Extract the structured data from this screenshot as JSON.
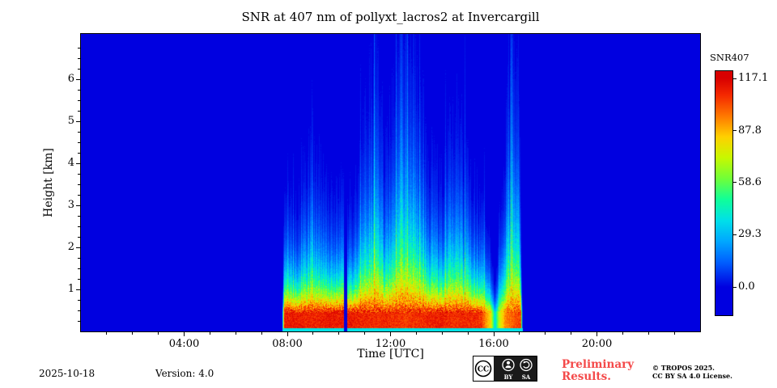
{
  "footer": {
    "date": "2025-10-18",
    "version": "Version: 4.0",
    "preliminary_line1": "Preliminary",
    "preliminary_line2": "Results.",
    "preliminary_color": "#f44a4a",
    "copyright_line1": "© TROPOS 2025.",
    "copyright_line2": "CC BY SA 4.0 License.",
    "cc_badge": {
      "cc": "CC",
      "by": "BY",
      "sa": "SA"
    }
  },
  "chart_data": {
    "type": "heatmap",
    "title": "SNR at 407 nm of pollyxt_lacros2 at Invercargill",
    "xlabel": "Time [UTC]",
    "ylabel": "Height [km]",
    "x_range_hours": [
      0,
      24
    ],
    "y_range_km": [
      0,
      7.077
    ],
    "x_ticks": [
      {
        "hour": 4,
        "label": "04:00"
      },
      {
        "hour": 8,
        "label": "08:00"
      },
      {
        "hour": 12,
        "label": "12:00"
      },
      {
        "hour": 16,
        "label": "16:00"
      },
      {
        "hour": 20,
        "label": "20:00"
      }
    ],
    "y_ticks": [
      1,
      2,
      3,
      4,
      5,
      6
    ],
    "grid": false,
    "colorbar": {
      "label": "SNR407",
      "vmin": 0,
      "vmax": 117.1,
      "ticks": [
        {
          "value": 0.0,
          "label": "0.0"
        },
        {
          "value": 29.3,
          "label": "29.3"
        },
        {
          "value": 58.6,
          "label": "58.6"
        },
        {
          "value": 87.8,
          "label": "87.8"
        },
        {
          "value": 117.1,
          "label": "117.1"
        }
      ],
      "colormap_stops": [
        {
          "p": 0.0,
          "c": "#0000e0"
        },
        {
          "p": 0.12,
          "c": "#0060ff"
        },
        {
          "p": 0.22,
          "c": "#00a8ff"
        },
        {
          "p": 0.32,
          "c": "#00e0e8"
        },
        {
          "p": 0.42,
          "c": "#10ff98"
        },
        {
          "p": 0.52,
          "c": "#70ff38"
        },
        {
          "p": 0.62,
          "c": "#c8f800"
        },
        {
          "p": 0.72,
          "c": "#ffd000"
        },
        {
          "p": 0.82,
          "c": "#ff7800"
        },
        {
          "p": 0.92,
          "c": "#f42800"
        },
        {
          "p": 1.0,
          "c": "#d80000"
        }
      ]
    },
    "heatmap": {
      "background_value": 0,
      "signal_start_hour": 7.85,
      "signal_end_hour": 17.12,
      "gaps": [
        {
          "start": 10.2,
          "end": 10.32
        }
      ],
      "base_line": {
        "height_km": 0.07,
        "value": 38
      },
      "ground_layer_top_km": 0.45,
      "keyframes": [
        {
          "t": 7.8,
          "top": 0.0,
          "ground": 0
        },
        {
          "t": 7.88,
          "top": 2.3,
          "ground": 112
        },
        {
          "t": 8.3,
          "top": 2.0,
          "ground": 112
        },
        {
          "t": 9.0,
          "top": 3.2,
          "ground": 110
        },
        {
          "t": 9.6,
          "top": 2.2,
          "ground": 112
        },
        {
          "t": 10.1,
          "top": 2.4,
          "ground": 112
        },
        {
          "t": 10.5,
          "top": 2.2,
          "ground": 112
        },
        {
          "t": 11.0,
          "top": 3.5,
          "ground": 110
        },
        {
          "t": 11.4,
          "top": 5.2,
          "ground": 108
        },
        {
          "t": 11.8,
          "top": 3.0,
          "ground": 110
        },
        {
          "t": 12.2,
          "top": 4.5,
          "ground": 108
        },
        {
          "t": 12.6,
          "top": 6.0,
          "ground": 106
        },
        {
          "t": 13.0,
          "top": 5.0,
          "ground": 108
        },
        {
          "t": 13.4,
          "top": 3.2,
          "ground": 110
        },
        {
          "t": 14.0,
          "top": 2.6,
          "ground": 112
        },
        {
          "t": 14.5,
          "top": 4.0,
          "ground": 108
        },
        {
          "t": 15.0,
          "top": 2.8,
          "ground": 110
        },
        {
          "t": 15.5,
          "top": 2.2,
          "ground": 108
        },
        {
          "t": 15.9,
          "top": 1.4,
          "ground": 80
        },
        {
          "t": 16.05,
          "top": 0.7,
          "ground": 35
        },
        {
          "t": 16.2,
          "top": 1.5,
          "ground": 70
        },
        {
          "t": 16.45,
          "top": 3.0,
          "ground": 95
        },
        {
          "t": 16.7,
          "top": 6.5,
          "ground": 100
        },
        {
          "t": 16.95,
          "top": 5.0,
          "ground": 105
        },
        {
          "t": 17.05,
          "top": 2.0,
          "ground": 105
        },
        {
          "t": 17.12,
          "top": 0.0,
          "ground": 0
        }
      ]
    }
  }
}
